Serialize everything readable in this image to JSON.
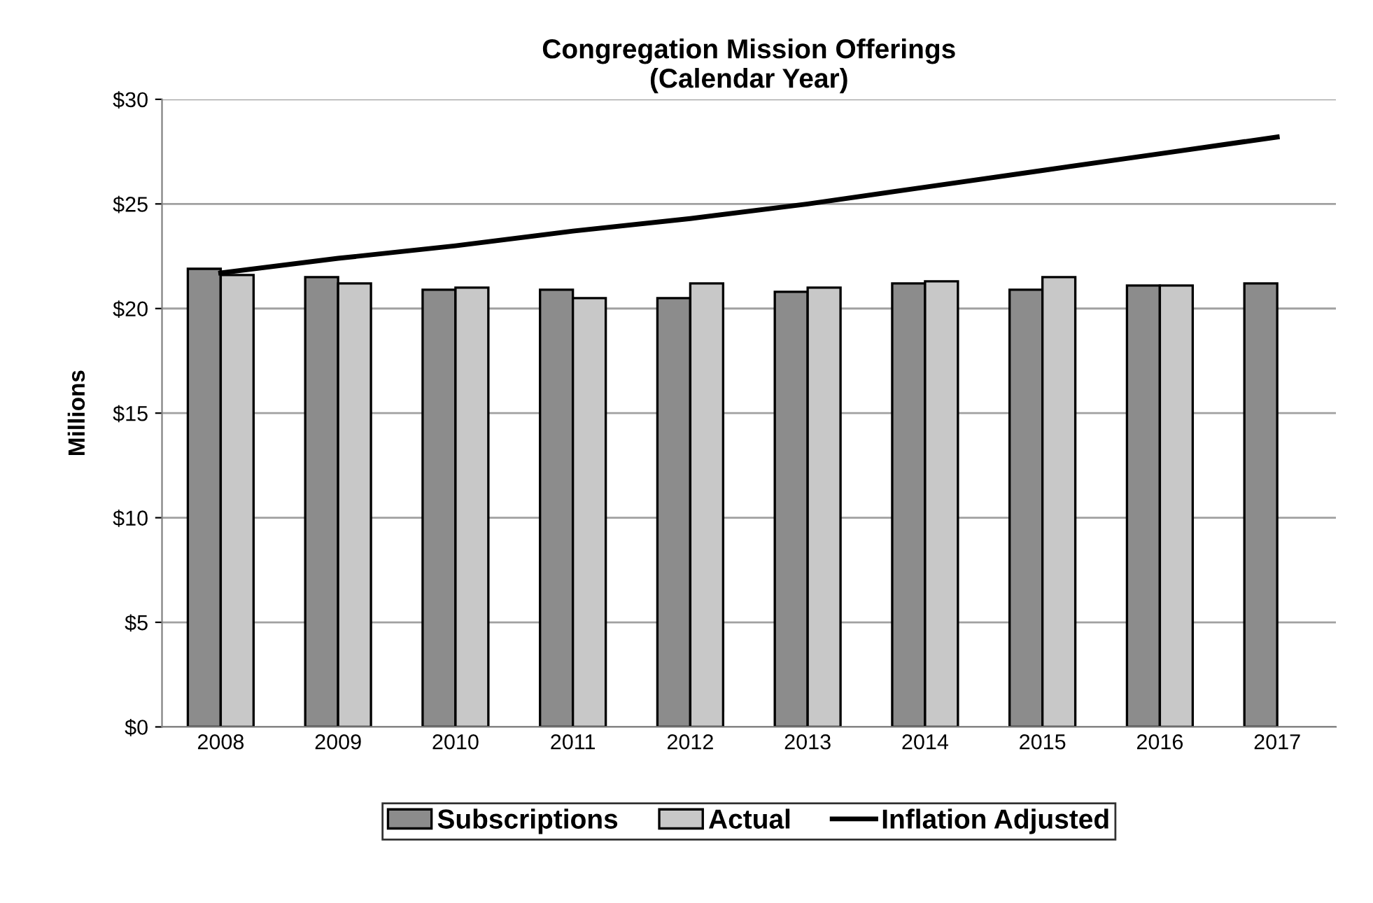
{
  "chart_data": {
    "type": "bar",
    "title": "Congregation Mission Offerings\n(Calendar Year)",
    "ylabel": "Millions",
    "categories": [
      "2008",
      "2009",
      "2010",
      "2011",
      "2012",
      "2013",
      "2014",
      "2015",
      "2016",
      "2017"
    ],
    "series": [
      {
        "name": "Subscriptions",
        "color": "#8c8c8c",
        "values": [
          21.9,
          21.5,
          20.9,
          20.9,
          20.5,
          20.8,
          21.2,
          20.9,
          21.1,
          21.2
        ]
      },
      {
        "name": "Actual",
        "color": "#c8c8c8",
        "values": [
          21.6,
          21.2,
          21.0,
          20.5,
          21.2,
          21.0,
          21.3,
          21.5,
          21.1,
          null
        ]
      },
      {
        "name": "Inflation Adjusted",
        "type": "line",
        "color": "#000000",
        "values": [
          21.7,
          22.4,
          23.0,
          23.7,
          24.3,
          25.0,
          25.8,
          26.6,
          27.4,
          28.2
        ]
      }
    ],
    "ylim": [
      0,
      30
    ],
    "yticks": [
      {
        "value": 0,
        "label": "$0"
      },
      {
        "value": 5,
        "label": "$5"
      },
      {
        "value": 10,
        "label": "$10"
      },
      {
        "value": 15,
        "label": "$15"
      },
      {
        "value": 20,
        "label": "$20"
      },
      {
        "value": 25,
        "label": "$25"
      },
      {
        "value": 30,
        "label": "$30"
      }
    ],
    "grid": "y",
    "legend": "bottom"
  }
}
